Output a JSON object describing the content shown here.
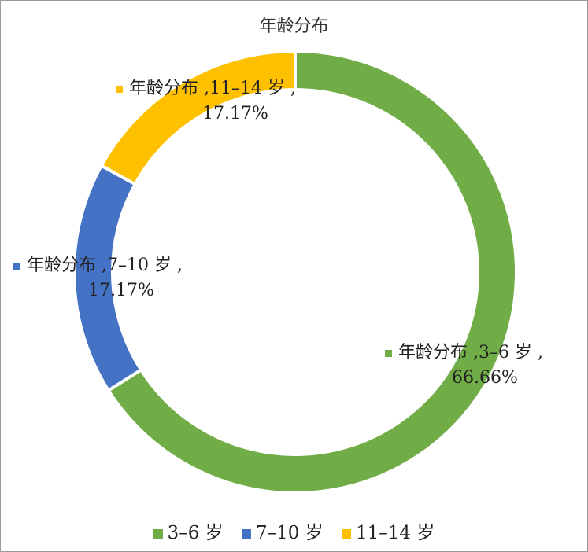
{
  "chart_data": {
    "type": "pie",
    "variant": "doughnut",
    "title": "年龄分布",
    "series_name": "年龄分布",
    "categories": [
      "3–6 岁",
      "7–10 岁",
      "11–14 岁"
    ],
    "values": [
      66.66,
      17.17,
      17.17
    ],
    "value_labels": [
      "66.66%",
      "17.17%",
      "17.17%"
    ],
    "colors": [
      "#70ad47",
      "#4472c4",
      "#ffc000"
    ],
    "data_labels": [
      {
        "line1": "年龄分布 ,3–6 岁 ,",
        "line2": "66.66%"
      },
      {
        "line1": "年龄分布 ,7–10 岁 ,",
        "line2": "17.17%"
      },
      {
        "line1": "年龄分布 ,11–14 岁 ,",
        "line2": "17.17%"
      }
    ],
    "legend_position": "bottom"
  }
}
